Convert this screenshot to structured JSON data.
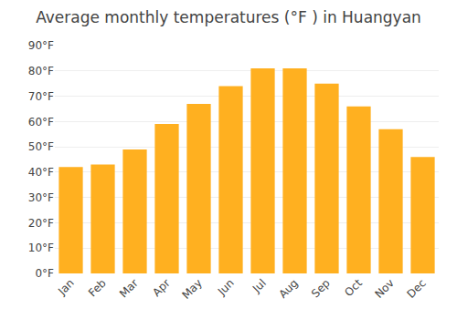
{
  "chart_data": {
    "type": "bar",
    "title": "Average monthly temperatures (°F ) in Huangyan",
    "categories": [
      "Jan",
      "Feb",
      "Mar",
      "Apr",
      "May",
      "Jun",
      "Jul",
      "Aug",
      "Sep",
      "Oct",
      "Nov",
      "Dec"
    ],
    "values": [
      42,
      43,
      49,
      59,
      67,
      74,
      81,
      81,
      75,
      66,
      57,
      46
    ],
    "color": "#FFB020",
    "ylim": [
      0,
      90
    ],
    "yticks": [
      {
        "value": 0,
        "label": "0°F"
      },
      {
        "value": 10,
        "label": "10°F"
      },
      {
        "value": 20,
        "label": "20°F"
      },
      {
        "value": 30,
        "label": "30°F"
      },
      {
        "value": 40,
        "label": "40°F"
      },
      {
        "value": 50,
        "label": "50°F"
      },
      {
        "value": 60,
        "label": "60°F"
      },
      {
        "value": 70,
        "label": "70°F"
      },
      {
        "value": 80,
        "label": "80°F"
      },
      {
        "value": 90,
        "label": "90°F"
      }
    ],
    "grid": true
  }
}
